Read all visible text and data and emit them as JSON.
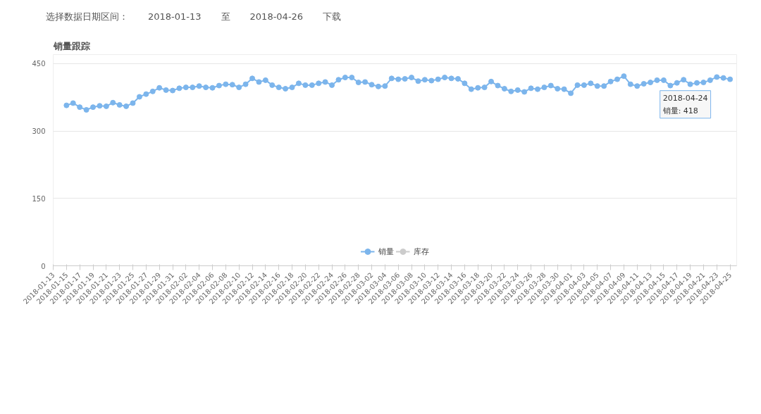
{
  "chart_data": {
    "type": "line",
    "title": "销量跟踪",
    "x": [
      "2018-01-15",
      "2018-01-16",
      "2018-01-17",
      "2018-01-18",
      "2018-01-19",
      "2018-01-20",
      "2018-01-21",
      "2018-01-22",
      "2018-01-23",
      "2018-01-24",
      "2018-01-25",
      "2018-01-26",
      "2018-01-27",
      "2018-01-28",
      "2018-01-29",
      "2018-01-30",
      "2018-01-31",
      "2018-02-01",
      "2018-02-02",
      "2018-02-03",
      "2018-02-04",
      "2018-02-05",
      "2018-02-06",
      "2018-02-07",
      "2018-02-08",
      "2018-02-09",
      "2018-02-10",
      "2018-02-11",
      "2018-02-12",
      "2018-02-13",
      "2018-02-14",
      "2018-02-15",
      "2018-02-16",
      "2018-02-17",
      "2018-02-18",
      "2018-02-19",
      "2018-02-20",
      "2018-02-21",
      "2018-02-22",
      "2018-02-23",
      "2018-02-24",
      "2018-02-25",
      "2018-02-26",
      "2018-02-27",
      "2018-02-28",
      "2018-03-01",
      "2018-03-02",
      "2018-03-03",
      "2018-03-04",
      "2018-03-05",
      "2018-03-06",
      "2018-03-07",
      "2018-03-08",
      "2018-03-09",
      "2018-03-10",
      "2018-03-11",
      "2018-03-12",
      "2018-03-13",
      "2018-03-14",
      "2018-03-15",
      "2018-03-16",
      "2018-03-17",
      "2018-03-18",
      "2018-03-19",
      "2018-03-20",
      "2018-03-21",
      "2018-03-22",
      "2018-03-23",
      "2018-03-24",
      "2018-03-25",
      "2018-03-26",
      "2018-03-27",
      "2018-03-28",
      "2018-03-29",
      "2018-03-30",
      "2018-03-31",
      "2018-04-01",
      "2018-04-02",
      "2018-04-03",
      "2018-04-04",
      "2018-04-05",
      "2018-04-06",
      "2018-04-07",
      "2018-04-08",
      "2018-04-09",
      "2018-04-10",
      "2018-04-11",
      "2018-04-12",
      "2018-04-13",
      "2018-04-14",
      "2018-04-15",
      "2018-04-16",
      "2018-04-17",
      "2018-04-18",
      "2018-04-19",
      "2018-04-20",
      "2018-04-21",
      "2018-04-22",
      "2018-04-23",
      "2018-04-24",
      "2018-04-25"
    ],
    "series": [
      {
        "name": "销量",
        "color": "#7cb5ec",
        "values": [
          357,
          362,
          353,
          347,
          353,
          356,
          355,
          363,
          358,
          355,
          362,
          376,
          382,
          388,
          396,
          391,
          390,
          395,
          397,
          397,
          400,
          397,
          396,
          401,
          404,
          403,
          397,
          404,
          417,
          409,
          413,
          402,
          397,
          394,
          397,
          406,
          402,
          402,
          406,
          409,
          402,
          414,
          419,
          419,
          408,
          409,
          403,
          399,
          400,
          417,
          415,
          416,
          419,
          411,
          414,
          412,
          415,
          419,
          417,
          416,
          406,
          393,
          396,
          397,
          410,
          401,
          394,
          388,
          391,
          387,
          395,
          393,
          397,
          401,
          394,
          393,
          384,
          402,
          402,
          406,
          400,
          400,
          410,
          415,
          422,
          404,
          400,
          405,
          408,
          413,
          413,
          401,
          407,
          414,
          404,
          407,
          408,
          413,
          420,
          418,
          415
        ]
      },
      {
        "name": "库存",
        "color": "#cccccc",
        "values": [
          null,
          null,
          null,
          null,
          null,
          null,
          null,
          null,
          null,
          null,
          null,
          null,
          null,
          null,
          null,
          null,
          null,
          null,
          null,
          null,
          null,
          null,
          null,
          null,
          null,
          null,
          null,
          null,
          null,
          null,
          null,
          null,
          null,
          null,
          null,
          null,
          null,
          null,
          null,
          null,
          null,
          null,
          null,
          null,
          null,
          null,
          null,
          null,
          null,
          null,
          null,
          null,
          null,
          null,
          null,
          null,
          null,
          null,
          null,
          null,
          null,
          null,
          null,
          null,
          null,
          null,
          null,
          null,
          null,
          null,
          null,
          null,
          null,
          null,
          null,
          null,
          null,
          null,
          null,
          null,
          null,
          null,
          null,
          null,
          null,
          null,
          null,
          null,
          null,
          null,
          null,
          null,
          null,
          null,
          null,
          null,
          null,
          null,
          null,
          null,
          null
        ]
      }
    ],
    "xlim": [
      "2018-01-13",
      "2018-04-26"
    ],
    "xticks": [
      "2018-01-13",
      "2018-01-15",
      "2018-01-17",
      "2018-01-19",
      "2018-01-21",
      "2018-01-23",
      "2018-01-25",
      "2018-01-27",
      "2018-01-29",
      "2018-01-31",
      "2018-02-02",
      "2018-02-04",
      "2018-02-06",
      "2018-02-08",
      "2018-02-10",
      "2018-02-12",
      "2018-02-14",
      "2018-02-16",
      "2018-02-18",
      "2018-02-20",
      "2018-02-22",
      "2018-02-24",
      "2018-02-26",
      "2018-02-28",
      "2018-03-02",
      "2018-03-04",
      "2018-03-06",
      "2018-03-08",
      "2018-03-10",
      "2018-03-12",
      "2018-03-14",
      "2018-03-16",
      "2018-03-18",
      "2018-03-20",
      "2018-03-22",
      "2018-03-24",
      "2018-03-26",
      "2018-03-28",
      "2018-03-30",
      "2018-04-01",
      "2018-04-03",
      "2018-04-05",
      "2018-04-07",
      "2018-04-09",
      "2018-04-11",
      "2018-04-13",
      "2018-04-15",
      "2018-04-17",
      "2018-04-19",
      "2018-04-21",
      "2018-04-23",
      "2018-04-25"
    ],
    "ylim": [
      0,
      470
    ],
    "yticks": [
      0,
      150,
      300,
      450
    ],
    "grid": "y",
    "legend": "bottom",
    "marker": "circle",
    "line_style": "solid",
    "annotations": [
      "选择数据日期区间：",
      "2018-01-13",
      "至",
      "2018-04-26",
      "下载",
      {
        "text": "2018-04-24\n销量: 418",
        "x": "2018-04-24",
        "y": 418
      }
    ]
  }
}
